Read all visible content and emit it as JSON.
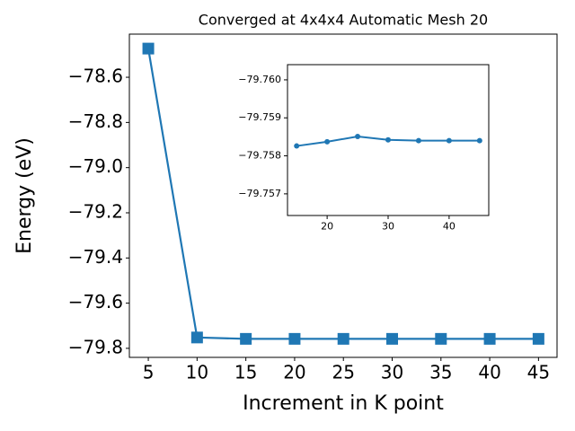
{
  "chart_data": [
    {
      "type": "line",
      "title": "Converged at 4x4x4 Automatic Mesh 20",
      "x_label": "Increment in K point",
      "y_label": "Energy (eV)",
      "x": [
        5,
        10,
        15,
        20,
        25,
        30,
        35,
        40,
        45
      ],
      "series": [
        {
          "color": "#1f77b4",
          "marker": "square",
          "values": [
            -78.473,
            -79.752,
            -79.758,
            -79.758,
            -79.758,
            -79.758,
            -79.758,
            -79.758,
            -79.758
          ]
        }
      ],
      "xlim": [
        3.06,
        46.9
      ],
      "xticks": [
        5,
        10,
        15,
        20,
        25,
        30,
        35,
        40,
        45
      ],
      "ylim": [
        -79.84,
        -78.409
      ],
      "yticks": [
        {
          "value": -79.8,
          "label": "−79.8"
        },
        {
          "value": -79.6,
          "label": "−79.6"
        },
        {
          "value": -79.4,
          "label": "−79.4"
        },
        {
          "value": -79.2,
          "label": "−79.2"
        },
        {
          "value": -79.0,
          "label": "−79.0"
        },
        {
          "value": -78.8,
          "label": "−78.8"
        },
        {
          "value": -78.6,
          "label": "−78.6"
        }
      ]
    },
    {
      "type": "line",
      "x": [
        15,
        20,
        25,
        30,
        35,
        40,
        45
      ],
      "series": [
        {
          "color": "#1f77b4",
          "marker": "circle",
          "values": [
            -79.75826,
            -79.75837,
            -79.75851,
            -79.75842,
            -79.7584,
            -79.7584,
            -79.7584
          ]
        }
      ],
      "xlim": [
        13.5,
        46.5
      ],
      "xticks": [
        20,
        30,
        40
      ],
      "ylim": [
        -79.75643,
        -79.7604
      ],
      "yticks": [
        {
          "value": -79.757,
          "label": "−79.757"
        },
        {
          "value": -79.758,
          "label": "−79.758"
        },
        {
          "value": -79.759,
          "label": "−79.759"
        },
        {
          "value": -79.76,
          "label": "−79.760"
        }
      ]
    }
  ]
}
